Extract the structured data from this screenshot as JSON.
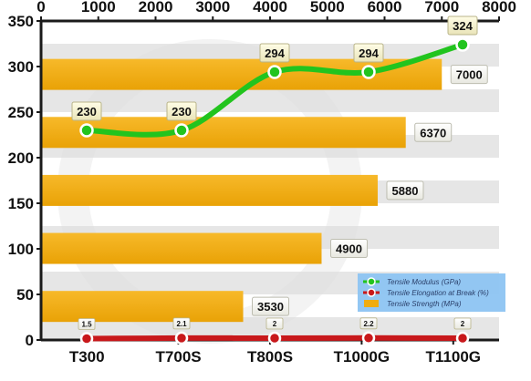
{
  "chart_data": {
    "type": "bar",
    "orientation": "horizontal",
    "categories": [
      "T300",
      "T700S",
      "T800S",
      "T1000G",
      "T1100G"
    ],
    "series": [
      {
        "name": "Tensile Strength (MPa)",
        "type": "bar",
        "axis": "top",
        "color": "#f0ac0f",
        "values": [
          3530,
          4900,
          5880,
          6370,
          7000
        ],
        "labels": [
          "3530",
          "4900",
          "5880",
          "6370",
          "7000"
        ]
      },
      {
        "name": "Tensile Modulus (GPa)",
        "type": "line",
        "axis": "left",
        "color": "#22c41e",
        "values": [
          230,
          230,
          294,
          294,
          324
        ],
        "labels": [
          "230",
          "230",
          "294",
          "294",
          "324"
        ]
      },
      {
        "name": "Tensile Elongation at Break (%)",
        "type": "line",
        "axis": "left",
        "color": "#c8181b",
        "values": [
          1.5,
          2.1,
          2,
          2.2,
          2
        ],
        "labels": [
          "1.5",
          "2.1",
          "2",
          "2.2",
          "2"
        ]
      }
    ],
    "top_axis": {
      "range": [
        0,
        8000
      ],
      "ticks": [
        "0",
        "1000",
        "2000",
        "3000",
        "4000",
        "5000",
        "6000",
        "7000",
        "8000"
      ]
    },
    "left_axis": {
      "range": [
        0,
        350
      ],
      "ticks": [
        "0",
        "50",
        "100",
        "150",
        "200",
        "250",
        "300",
        "350"
      ]
    },
    "grid": true,
    "legend": {
      "position": "bottom-right",
      "items": [
        {
          "label": "Tensile Modulus (GPa)",
          "color": "#22c41e",
          "marker": "circle"
        },
        {
          "label": "Tensile Elongation at Break (%)",
          "color": "#c8181b",
          "marker": "circle"
        },
        {
          "label": "Tensile Strength (MPa)",
          "color": "#f0ac0f",
          "marker": "bar"
        }
      ]
    },
    "colors": {
      "axis": "#1a1a1a",
      "band": "#e6e6e6",
      "legend_bg": "#8dc4f2"
    }
  }
}
